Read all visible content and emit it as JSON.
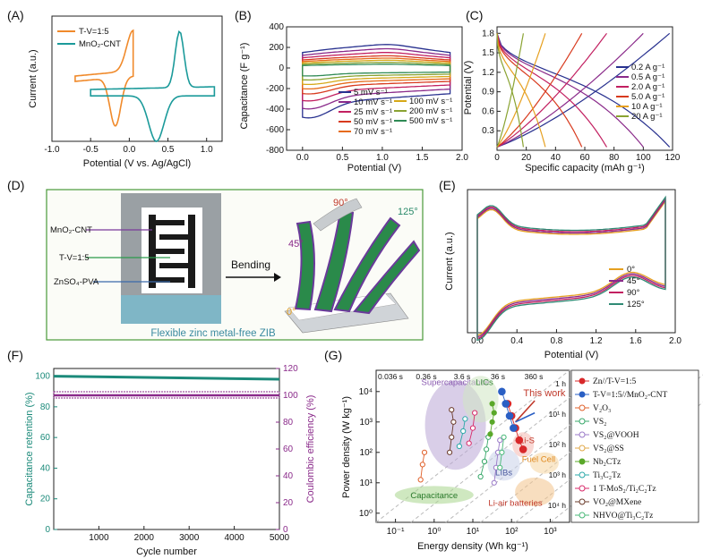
{
  "panels": {
    "A": {
      "label": "(A)",
      "chart_data": {
        "type": "line",
        "xlabel": "Potential (V vs. Ag/AgCl)",
        "ylabel": "Current (a.u.)",
        "xlim": [
          -1.0,
          1.2
        ],
        "xticks": [
          "-1.0",
          "-0.5",
          "0.0",
          "0.5",
          "1.0"
        ],
        "series": [
          {
            "name": "T-V=1:5",
            "color": "#f08a2b"
          },
          {
            "name": "MnO₂-CNT",
            "color": "#1b9a9a"
          }
        ]
      }
    },
    "B": {
      "label": "(B)",
      "chart_data": {
        "type": "line",
        "xlabel": "Potential (V)",
        "ylabel": "Capacitance (F g⁻¹)",
        "xlim": [
          -0.2,
          2.0
        ],
        "ylim": [
          -800,
          400
        ],
        "xticks": [
          "0.0",
          "0.5",
          "1.0",
          "1.5",
          "2.0"
        ],
        "yticks": [
          "400",
          "200",
          "0",
          "-200",
          "-400",
          "-600",
          "-800"
        ],
        "series": [
          {
            "name": "5 mV s⁻¹",
            "color": "#28318f",
            "amp": 1.0
          },
          {
            "name": "10 mV s⁻¹",
            "color": "#8a2a8a",
            "amp": 0.82
          },
          {
            "name": "25 mV s⁻¹",
            "color": "#c22061",
            "amp": 0.66
          },
          {
            "name": "50 mV s⁻¹",
            "color": "#d83a1e",
            "amp": 0.52
          },
          {
            "name": "70 mV s⁻¹",
            "color": "#e66b1a",
            "amp": 0.42
          },
          {
            "name": "100 mV s⁻¹",
            "color": "#d6a818",
            "amp": 0.33
          },
          {
            "name": "200 mV s⁻¹",
            "color": "#8aa332",
            "amp": 0.24
          },
          {
            "name": "500 mV s⁻¹",
            "color": "#2f8a55",
            "amp": 0.16
          }
        ]
      }
    },
    "C": {
      "label": "(C)",
      "chart_data": {
        "type": "line",
        "xlabel": "Specific capacity (mAh g⁻¹)",
        "ylabel": "Potential (V)",
        "xlim": [
          0,
          120
        ],
        "ylim": [
          0,
          1.9
        ],
        "xticks": [
          "0",
          "20",
          "40",
          "60",
          "80",
          "100",
          "120"
        ],
        "yticks": [
          "1.8",
          "1.5",
          "1.2",
          "0.9",
          "0.6",
          "0.3"
        ],
        "series": [
          {
            "name": "0.2 A g⁻¹",
            "color": "#28318f",
            "capacity": 118
          },
          {
            "name": "0.5 A g⁻¹",
            "color": "#8a2a8a",
            "capacity": 100
          },
          {
            "name": "2.0 A g⁻¹",
            "color": "#c22061",
            "capacity": 75
          },
          {
            "name": "5.0 A g⁻¹",
            "color": "#d83a1e",
            "capacity": 58
          },
          {
            "name": "10 A g⁻¹",
            "color": "#e6a020",
            "capacity": 33
          },
          {
            "name": "20 A g⁻¹",
            "color": "#8aa332",
            "capacity": 18
          }
        ]
      }
    },
    "D": {
      "label": "(D)",
      "labels": [
        "MnO₂-CNT",
        "T-V=1:5",
        "ZnSO₄-PVA"
      ],
      "arrow_text": "Bending",
      "caption": "Flexible zinc metal-free ZIB",
      "angles": [
        "90°",
        "125°",
        "45°",
        "0°"
      ]
    },
    "E": {
      "label": "(E)",
      "chart_data": {
        "type": "line",
        "xlabel": "Potential (V)",
        "ylabel": "Current (a.u.)",
        "xlim": [
          -0.1,
          2.0
        ],
        "xticks": [
          "0.0",
          "0.4",
          "0.8",
          "1.2",
          "1.6",
          "2.0"
        ],
        "series": [
          {
            "name": "0°",
            "color": "#e6a020"
          },
          {
            "name": "45°",
            "color": "#8a2a8a"
          },
          {
            "name": "90°",
            "color": "#c22061"
          },
          {
            "name": "125°",
            "color": "#2f8a75"
          }
        ]
      }
    },
    "F": {
      "label": "(F)",
      "chart_data": {
        "type": "scatter",
        "xlabel": "Cycle number",
        "ylabel_left": "Capacitance retention (%)",
        "ylabel_right": "Coulombic efficiency (%)",
        "xlim": [
          0,
          5000
        ],
        "ylim_left": [
          0,
          105
        ],
        "ylim_right": [
          0,
          120
        ],
        "xticks": [
          "1000",
          "2000",
          "3000",
          "4000",
          "5000"
        ],
        "yticks_left": [
          "100",
          "80",
          "60",
          "40",
          "20",
          "0"
        ],
        "yticks_right": [
          "120",
          "100",
          "80",
          "60",
          "40",
          "20",
          "0"
        ],
        "series": [
          {
            "name": "Capacitance retention",
            "axis": "left",
            "color": "#1b8a7a",
            "start": 100,
            "end": 98
          },
          {
            "name": "Coulombic efficiency",
            "axis": "right",
            "color": "#8a2a8a",
            "value": 100
          }
        ]
      }
    },
    "G": {
      "label": "(G)",
      "chart_data": {
        "type": "scatter",
        "xlabel": "Energy density (Wh kg⁻¹)",
        "ylabel": "Power density (W kg⁻¹)",
        "xscale": "log",
        "yscale": "log",
        "xticks": [
          "10⁻¹",
          "10⁰",
          "10¹",
          "10²",
          "10³"
        ],
        "yticks": [
          "10⁴",
          "10³",
          "10²",
          "10¹",
          "10⁰"
        ],
        "time_labels_top": [
          "0.036 s",
          "0.36 s",
          "3.6 s",
          "36 s",
          "360 s"
        ],
        "time_labels_right": [
          "1 h",
          "10¹ h",
          "10² h",
          "10³ h",
          "10⁴ h"
        ],
        "regions": [
          "Supercapacitance",
          "LICs",
          "Li-S",
          "Fuel Cell",
          "LIBs",
          "Capacitance",
          "Li-air batteries"
        ],
        "annotation": "This work",
        "legend": [
          {
            "name": "Zn//T-V=1:5",
            "color": "#d8282a",
            "marker": "circle"
          },
          {
            "name": "T-V=1:5//MnO₂-CNT",
            "color": "#2a5fc4",
            "marker": "circle"
          },
          {
            "name": "V₂O₃",
            "color": "#e0602a",
            "marker": "tri-right"
          },
          {
            "name": "VS₂",
            "color": "#38a86a",
            "marker": "open-circle"
          },
          {
            "name": "VS₂@VOOH",
            "color": "#9a7ac8",
            "marker": "diamond"
          },
          {
            "name": "VS₂@SS",
            "color": "#e0a848",
            "marker": "tri-left"
          },
          {
            "name": "Nb₂CTz",
            "color": "#5aa82a",
            "marker": "hexagon"
          },
          {
            "name": "Ti₃C₂Tz",
            "color": "#2aa8a8",
            "marker": "star"
          },
          {
            "name": "1 T-MoS₂/Ti₂C₂Tz",
            "color": "#d82a6a",
            "marker": "star"
          },
          {
            "name": "VO₂@MXene",
            "color": "#6a3a2a",
            "marker": "diamond"
          },
          {
            "name": "NHVO@Ti₃C₂Tz",
            "color": "#48b878",
            "marker": "x-box"
          }
        ]
      }
    }
  }
}
